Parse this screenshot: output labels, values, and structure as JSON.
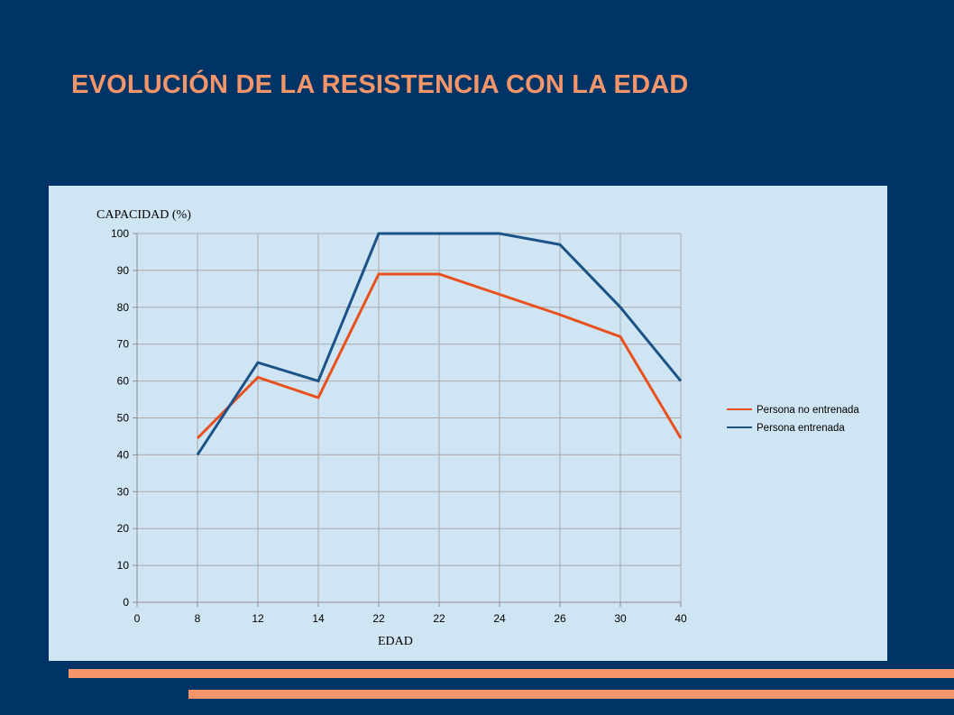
{
  "slide": {
    "title": "EVOLUCIÓN DE LA RESISTENCIA CON LA EDAD",
    "background_color": "#003366",
    "title_color": "#F4956A",
    "panel_color": "#D0E5F3",
    "accent_bar_color": "#F4956A"
  },
  "chart_data": {
    "type": "line",
    "title": "",
    "ylabel": "CAPACIDAD (%)",
    "xlabel": "EDAD",
    "categories": [
      "0",
      "8",
      "12",
      "14",
      "22",
      "22",
      "24",
      "26",
      "30",
      "40"
    ],
    "ylim": [
      0,
      100
    ],
    "yticks": [
      0,
      10,
      20,
      30,
      40,
      50,
      60,
      70,
      80,
      90,
      100
    ],
    "grid": true,
    "legend_position": "right",
    "series": [
      {
        "name": "Persona no entrenada",
        "color": "#E8501E",
        "values": [
          null,
          44.5,
          61,
          55.5,
          89,
          89,
          null,
          78,
          72,
          44.5
        ],
        "interpolate_gaps": true
      },
      {
        "name": "Persona entrenada",
        "color": "#1B5287",
        "values": [
          null,
          40,
          65,
          60,
          100,
          100,
          100,
          97,
          80,
          60
        ],
        "interpolate_gaps": true
      }
    ]
  }
}
